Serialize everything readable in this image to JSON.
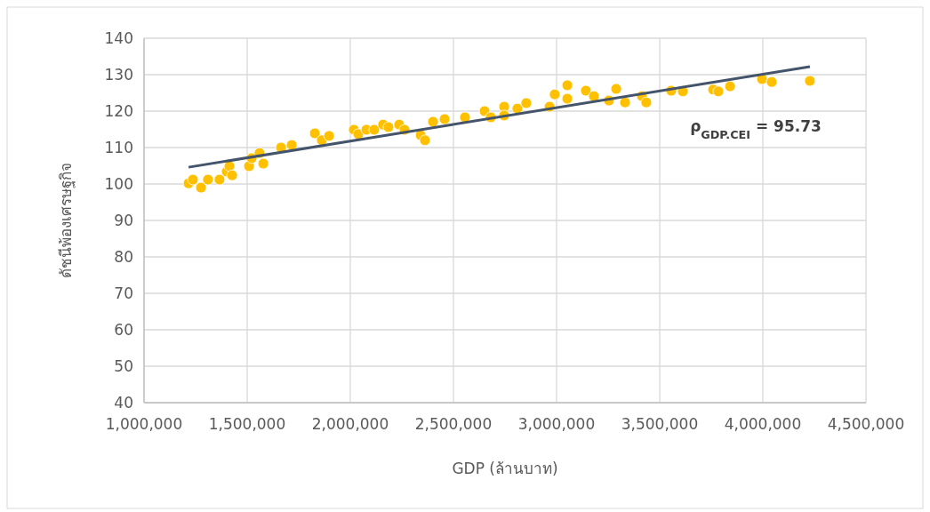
{
  "chart_data": {
    "type": "scatter",
    "xlabel": "GDP (ล้านบาท)",
    "ylabel": "ดัชนีพ้องเศรษฐกิจ",
    "xlim": [
      1000000,
      4500000
    ],
    "ylim": [
      40,
      140
    ],
    "xticks": [
      {
        "value": 1000000,
        "label": "1,000,000"
      },
      {
        "value": 1500000,
        "label": "1,500,000"
      },
      {
        "value": 2000000,
        "label": "2,000,000"
      },
      {
        "value": 2500000,
        "label": "2,500,000"
      },
      {
        "value": 3000000,
        "label": "3,000,000"
      },
      {
        "value": 3500000,
        "label": "3,500,000"
      },
      {
        "value": 4000000,
        "label": "4,000,000"
      },
      {
        "value": 4500000,
        "label": "4,500,000"
      }
    ],
    "yticks": [
      40,
      50,
      60,
      70,
      80,
      90,
      100,
      110,
      120,
      130,
      140
    ],
    "grid": true,
    "annotations": [
      "ρ$_{GDP.CEI}$ = 95.73"
    ],
    "series": [
      {
        "marker": "circle",
        "color": "#ffc000",
        "x": [
          1216000,
          1237000,
          1276000,
          1310000,
          1366000,
          1401000,
          1414000,
          1427000,
          1509000,
          1522000,
          1560000,
          1578000,
          1664000,
          1716000,
          1828000,
          1862000,
          1897000,
          2017000,
          2039000,
          2078000,
          2116000,
          2159000,
          2185000,
          2237000,
          2263000,
          2341000,
          2362000,
          2401000,
          2457000,
          2556000,
          2651000,
          2681000,
          2746000,
          2746000,
          2810000,
          2853000,
          2966000,
          2991000,
          3052000,
          3052000,
          3142000,
          3181000,
          3254000,
          3289000,
          3332000,
          3414000,
          3435000,
          3556000,
          3612000,
          3759000,
          3784000,
          3841000,
          3996000,
          4043000,
          4228000
        ],
        "values": [
          100.2,
          101.2,
          99.0,
          101.2,
          101.2,
          103.4,
          104.9,
          102.4,
          104.9,
          107.1,
          108.5,
          105.6,
          110.0,
          110.7,
          113.9,
          112.0,
          113.2,
          114.9,
          113.7,
          114.9,
          114.9,
          116.3,
          115.6,
          116.3,
          114.9,
          113.4,
          112.0,
          117.1,
          117.8,
          118.3,
          120.0,
          118.3,
          121.2,
          118.8,
          120.7,
          122.2,
          121.2,
          124.6,
          127.1,
          123.4,
          125.6,
          124.1,
          122.9,
          126.1,
          122.4,
          124.1,
          122.4,
          125.6,
          125.4,
          125.9,
          125.4,
          126.8,
          128.8,
          128.0,
          128.3
        ]
      },
      {
        "type": "line",
        "marker": "none",
        "color": "#44546a",
        "x": [
          1216000,
          4228000
        ],
        "values": [
          104.6,
          132.2
        ]
      }
    ]
  }
}
